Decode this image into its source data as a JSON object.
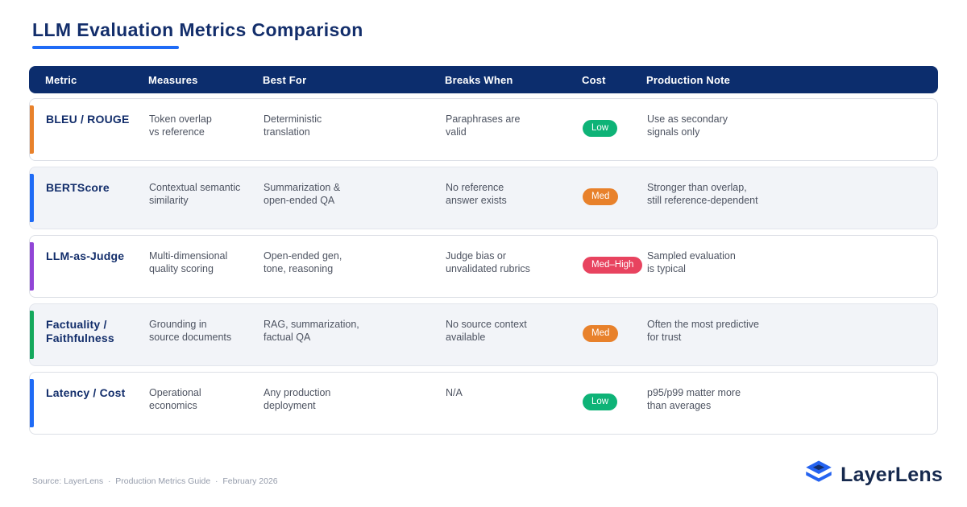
{
  "page": {
    "title": "LLM Evaluation Metrics Comparison"
  },
  "colors": {
    "header_bg": "#0c2d6d",
    "title_navy": "#132e6b",
    "underline_blue": "#1f6bf6",
    "body_text": "#4d5361",
    "alt_row_bg": "#f2f4f8"
  },
  "table": {
    "headers": [
      "Metric",
      "Measures",
      "Best For",
      "Breaks When",
      "Cost",
      "Production Note"
    ],
    "rows": [
      {
        "metric": "BLEU / ROUGE",
        "accent_color": "#e8812b",
        "measures": "Token overlap\nvs reference",
        "best_for": "Deterministic\ntranslation",
        "breaks_when": "Paraphrases are\nvalid",
        "cost": "Low",
        "cost_color": "#0eb377",
        "production_note": "Use as secondary\nsignals only"
      },
      {
        "metric": "BERTScore",
        "accent_color": "#1f6bf6",
        "measures": "Contextual semantic\nsimilarity",
        "best_for": "Summarization &\nopen-ended QA",
        "breaks_when": "No reference\nanswer exists",
        "cost": "Med",
        "cost_color": "#e8812b",
        "production_note": "Stronger than overlap,\nstill reference-dependent"
      },
      {
        "metric": "LLM-as-Judge",
        "accent_color": "#9145d6",
        "measures": "Multi-dimensional\nquality scoring",
        "best_for": "Open-ended gen,\ntone, reasoning",
        "breaks_when": "Judge bias or\nunvalidated rubrics",
        "cost": "Med–High",
        "cost_color": "#e8435f",
        "production_note": "Sampled evaluation\nis typical"
      },
      {
        "metric": "Factuality /\nFaithfulness",
        "accent_color": "#14a85c",
        "measures": "Grounding in\nsource documents",
        "best_for": "RAG, summarization,\nfactual QA",
        "breaks_when": "No source context\navailable",
        "cost": "Med",
        "cost_color": "#e8812b",
        "production_note": "Often the most predictive\nfor trust"
      },
      {
        "metric": "Latency / Cost",
        "accent_color": "#1f6bf6",
        "measures": "Operational\neconomics",
        "best_for": "Any production\ndeployment",
        "breaks_when": "N/A",
        "cost": "Low",
        "cost_color": "#0eb377",
        "production_note": "p95/p99 matter more\nthan averages"
      }
    ]
  },
  "footer": {
    "source_line": "Source: LayerLens  ·  Production Metrics Guide  ·  February 2026"
  },
  "logo": {
    "name": "LayerLens",
    "icon": "layers-icon",
    "icon_blue": "#2563f0",
    "icon_navy": "#132e6b"
  }
}
